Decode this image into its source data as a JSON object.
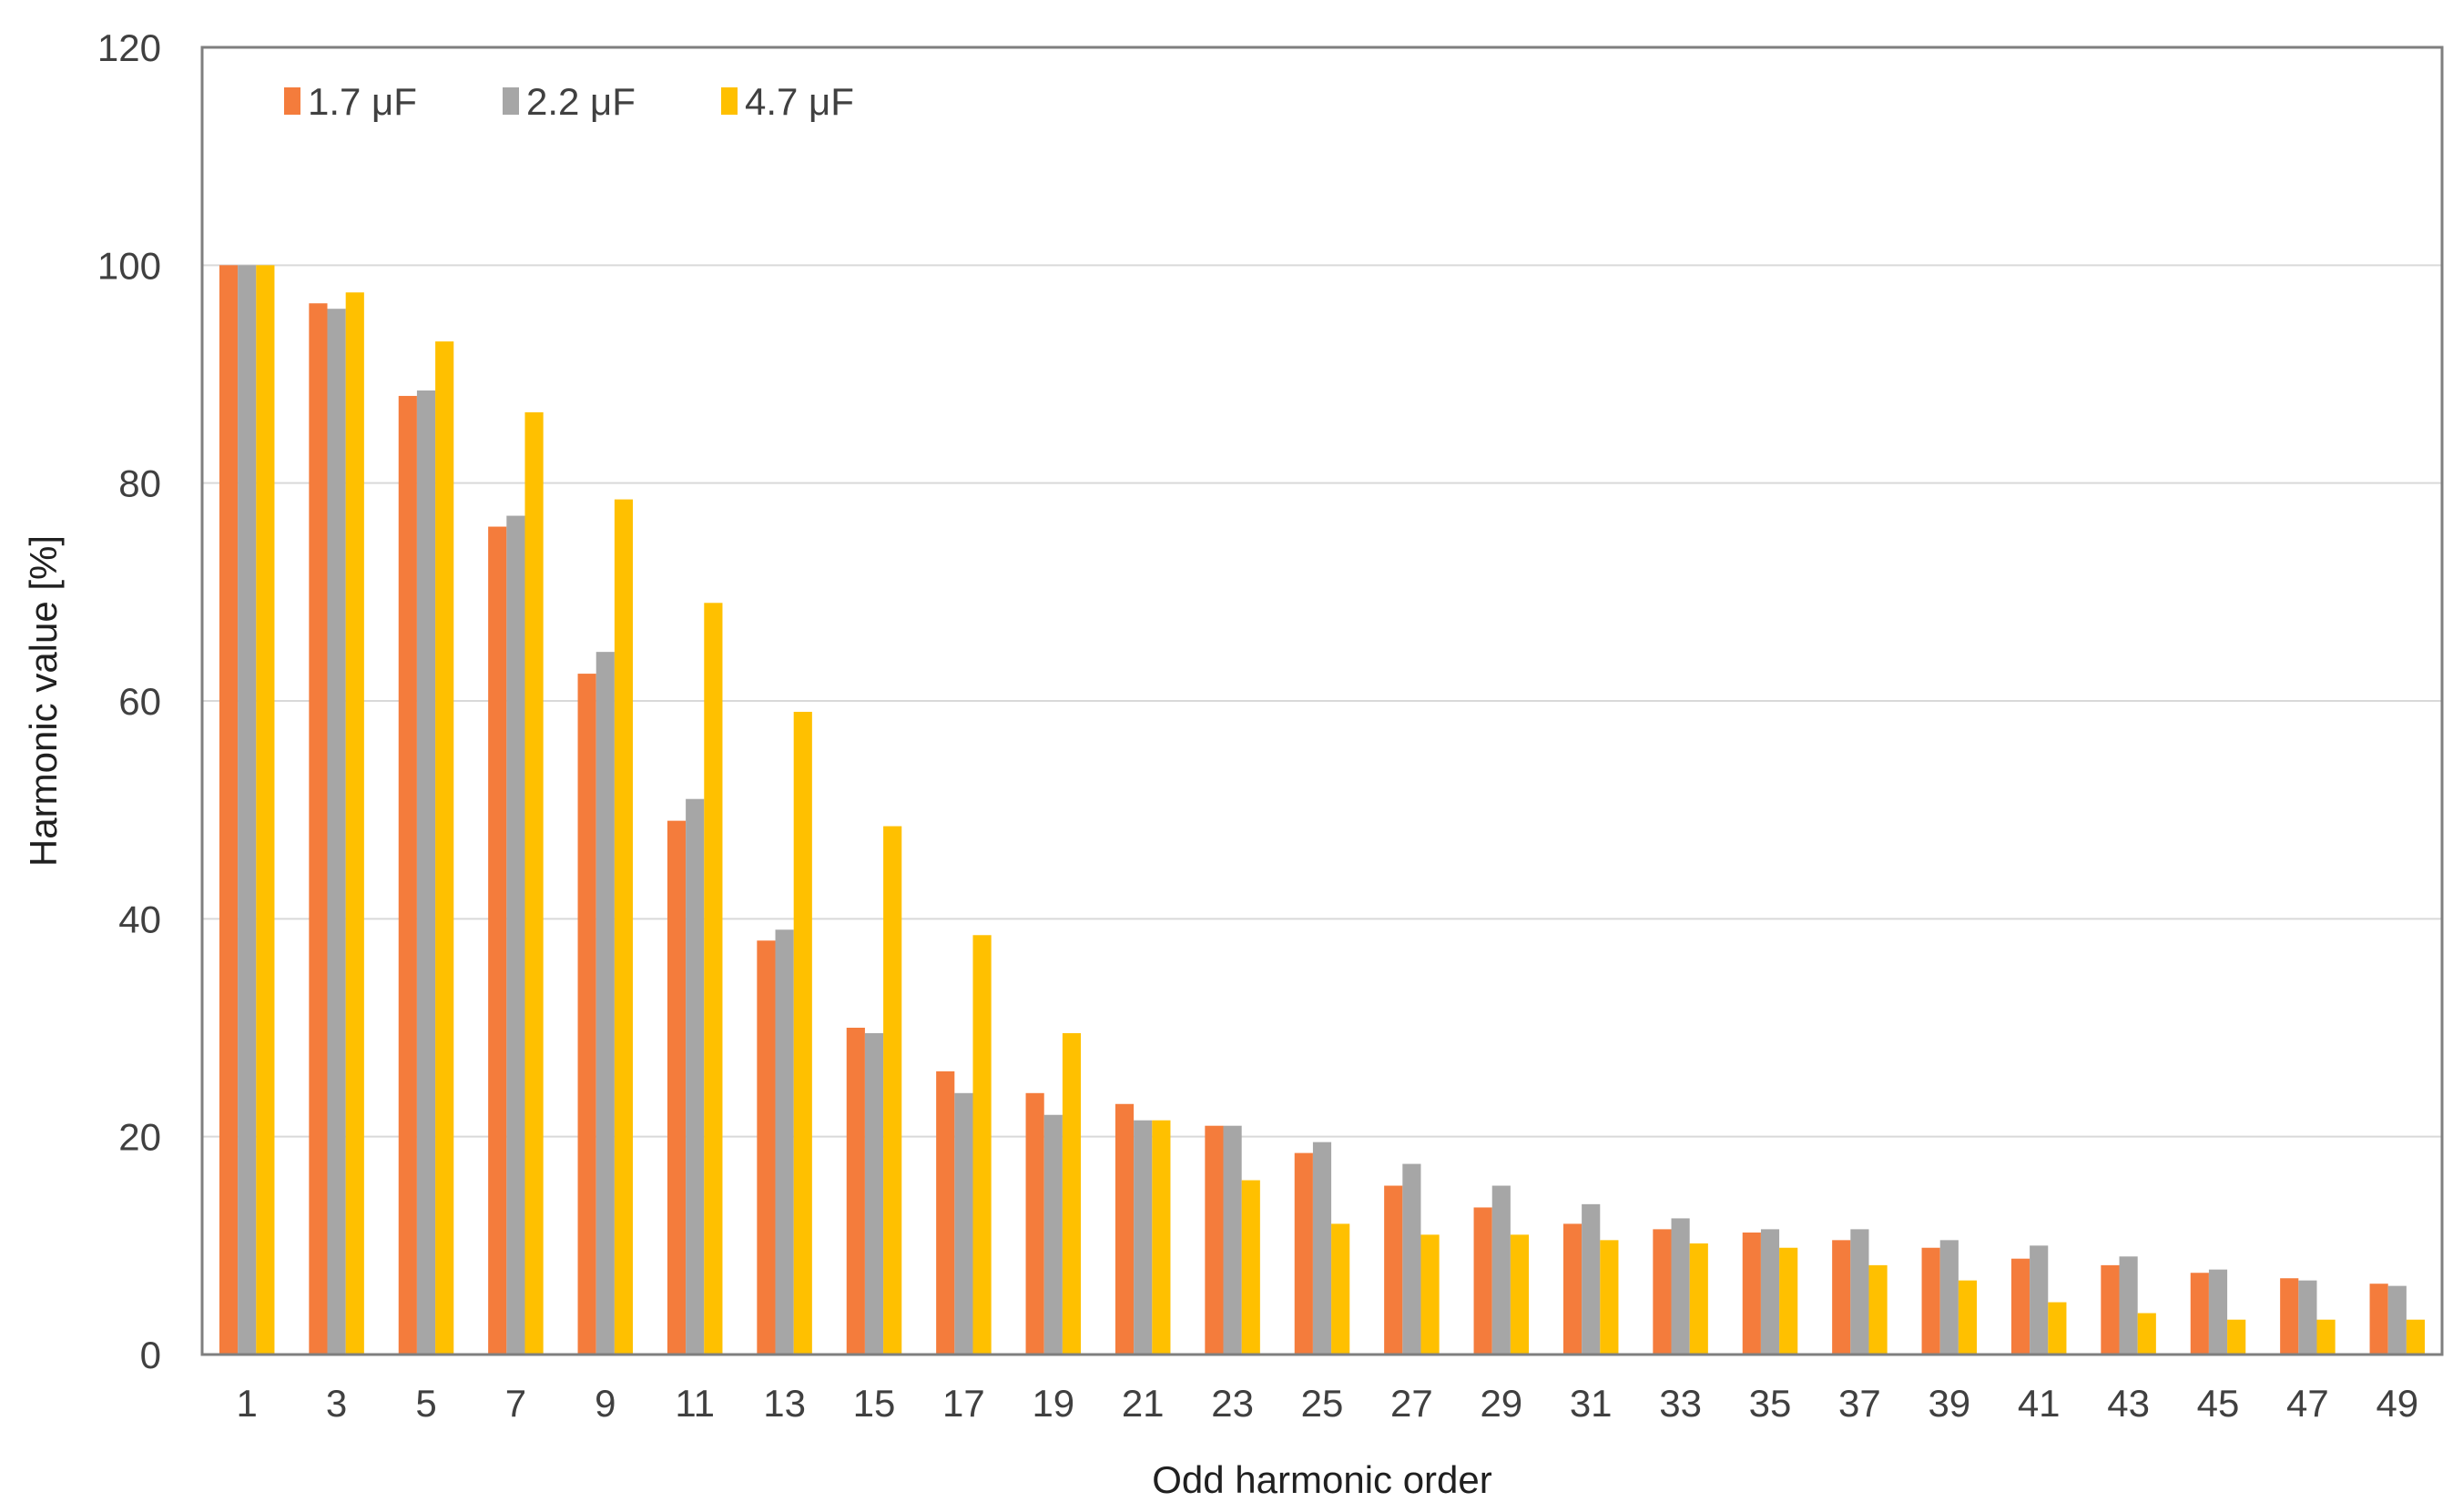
{
  "chart_data": {
    "type": "bar",
    "title": "",
    "xlabel": "Odd harmonic order",
    "ylabel": "Harmonic value [%]",
    "ylim": [
      0,
      120
    ],
    "yticks": [
      0,
      20,
      40,
      60,
      80,
      100,
      120
    ],
    "grid": "horizontal",
    "legend_position": "top-left",
    "categories": [
      "1",
      "3",
      "5",
      "7",
      "9",
      "11",
      "13",
      "15",
      "17",
      "19",
      "21",
      "23",
      "25",
      "27",
      "29",
      "31",
      "33",
      "35",
      "37",
      "39",
      "41",
      "43",
      "45",
      "47",
      "49"
    ],
    "series": [
      {
        "name": "1.7 μF",
        "color": "#f47c3c",
        "values": [
          100,
          96.5,
          88,
          76,
          62.5,
          49,
          38,
          30,
          26,
          24,
          23,
          21,
          18.5,
          15.5,
          13.5,
          12,
          11.5,
          11.2,
          10.5,
          9.8,
          8.8,
          8.2,
          7.5,
          7,
          6.5
        ]
      },
      {
        "name": "2.2 μF",
        "color": "#a6a6a6",
        "values": [
          100,
          96,
          88.5,
          77,
          64.5,
          51,
          39,
          29.5,
          24,
          22,
          21.5,
          21,
          19.5,
          17.5,
          15.5,
          13.8,
          12.5,
          11.5,
          11.5,
          10.5,
          10,
          9,
          7.8,
          6.8,
          6.3
        ]
      },
      {
        "name": "4.7 μF",
        "color": "#ffc000",
        "values": [
          100,
          97.5,
          93,
          86.5,
          78.5,
          69,
          59,
          48.5,
          38.5,
          29.5,
          21.5,
          16,
          12,
          11,
          11,
          10.5,
          10.2,
          9.8,
          8.2,
          6.8,
          4.8,
          3.8,
          3.2,
          3.2,
          3.2
        ]
      }
    ]
  }
}
